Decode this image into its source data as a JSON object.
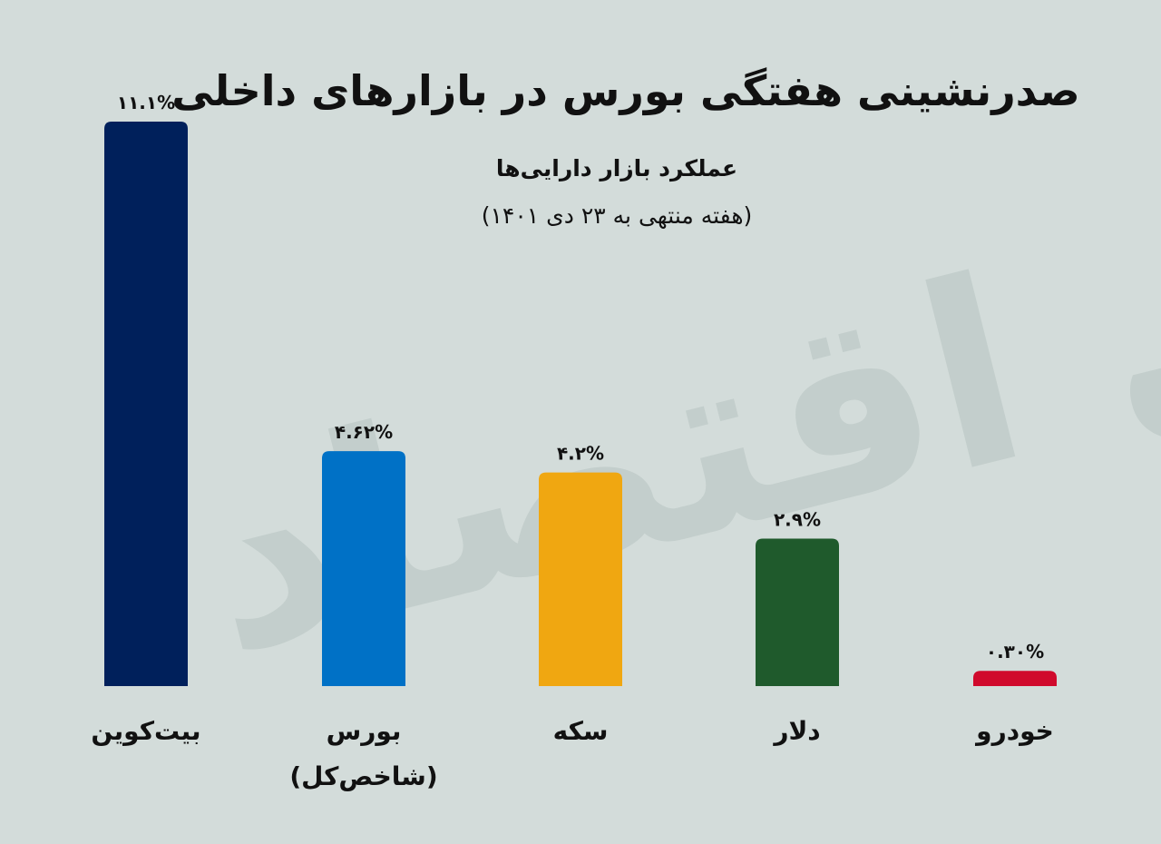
{
  "title": "صدرنشینی هفتگی بورس در بازارهای داخلی",
  "subtitle": "عملکرد بازار دارایی‌ها",
  "subtitle2": "(هفته منتهی به ۲۳ دی ۱۴۰۱)",
  "watermark": "فردای اقتصاد",
  "chart_data": {
    "type": "bar",
    "title": "صدرنشینی هفتگی بورس در بازارهای داخلی",
    "subtitle": "عملکرد بازار دارایی‌ها (هفته منتهی به ۲۳ دی ۱۴۰۱)",
    "categories": [
      "بیت‌کوین",
      "بورس (شاخص‌کل)",
      "سکه",
      "دلار",
      "خودرو"
    ],
    "category_lines": [
      [
        "بیت‌کوین"
      ],
      [
        "بورس",
        "(شاخص‌کل)"
      ],
      [
        "سکه"
      ],
      [
        "دلار"
      ],
      [
        "خودرو"
      ]
    ],
    "values": [
      11.1,
      4.62,
      4.2,
      2.9,
      0.3
    ],
    "value_labels": [
      "۱۱.۱%",
      "۴.۶۲%",
      "۴.۲%",
      "۲.۹%",
      "۰.۳۰%"
    ],
    "colors": [
      "#00205b",
      "#0071c6",
      "#f0a711",
      "#1f5a2c",
      "#d00a2c"
    ],
    "ylim": [
      0,
      11.1
    ],
    "grid": false,
    "legend": "none"
  }
}
